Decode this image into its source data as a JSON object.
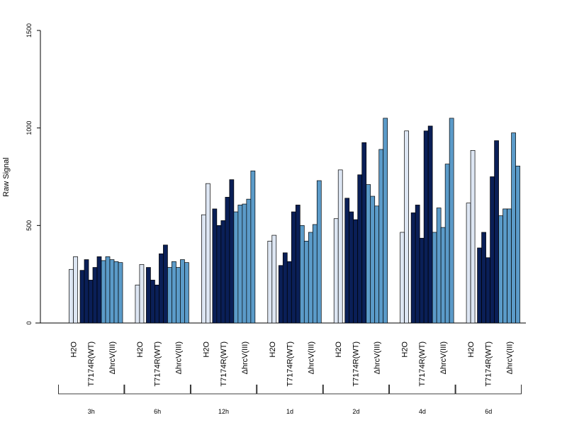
{
  "chart_data": {
    "type": "bar",
    "ylabel": "Raw Signal",
    "ylim": [
      0,
      1500
    ],
    "yticks": [
      0,
      500,
      1000,
      1500
    ],
    "group_labels": [
      "H2O",
      "T7174R(WT)",
      "ΔhrcV(III)"
    ],
    "colors": {
      "H2O": "#dde6f3",
      "T7174R(WT)": "#0a1f57",
      "ΔhrcV(III)": "#5b9bc9",
      "axis": "#000000"
    },
    "timepoints": [
      {
        "label": "3h",
        "H2O": [
          275,
          340
        ],
        "T7174R(WT)": [
          270,
          325,
          220,
          285,
          340
        ],
        "ΔhrcV(III)": [
          320,
          340,
          325,
          315,
          310
        ]
      },
      {
        "label": "6h",
        "H2O": [
          195,
          300
        ],
        "T7174R(WT)": [
          285,
          220,
          195,
          355,
          400
        ],
        "ΔhrcV(III)": [
          285,
          315,
          285,
          325,
          310
        ]
      },
      {
        "label": "12h",
        "H2O": [
          555,
          715
        ],
        "T7174R(WT)": [
          585,
          500,
          525,
          645,
          735
        ],
        "ΔhrcV(III)": [
          570,
          605,
          610,
          635,
          780
        ]
      },
      {
        "label": "1d",
        "H2O": [
          420,
          450
        ],
        "T7174R(WT)": [
          295,
          360,
          315,
          570,
          605
        ],
        "ΔhrcV(III)": [
          500,
          420,
          465,
          505,
          730
        ]
      },
      {
        "label": "2d",
        "H2O": [
          535,
          785
        ],
        "T7174R(WT)": [
          640,
          570,
          530,
          760,
          925
        ],
        "ΔhrcV(III)": [
          710,
          650,
          600,
          890,
          1050
        ]
      },
      {
        "label": "4d",
        "H2O": [
          465,
          985
        ],
        "T7174R(WT)": [
          565,
          605,
          435,
          985,
          1010
        ],
        "ΔhrcV(III)": [
          465,
          590,
          490,
          815,
          1050
        ]
      },
      {
        "label": "6d",
        "H2O": [
          615,
          885
        ],
        "T7174R(WT)": [
          385,
          465,
          335,
          750,
          935
        ],
        "ΔhrcV(III)": [
          550,
          585,
          585,
          975,
          805
        ]
      }
    ]
  }
}
